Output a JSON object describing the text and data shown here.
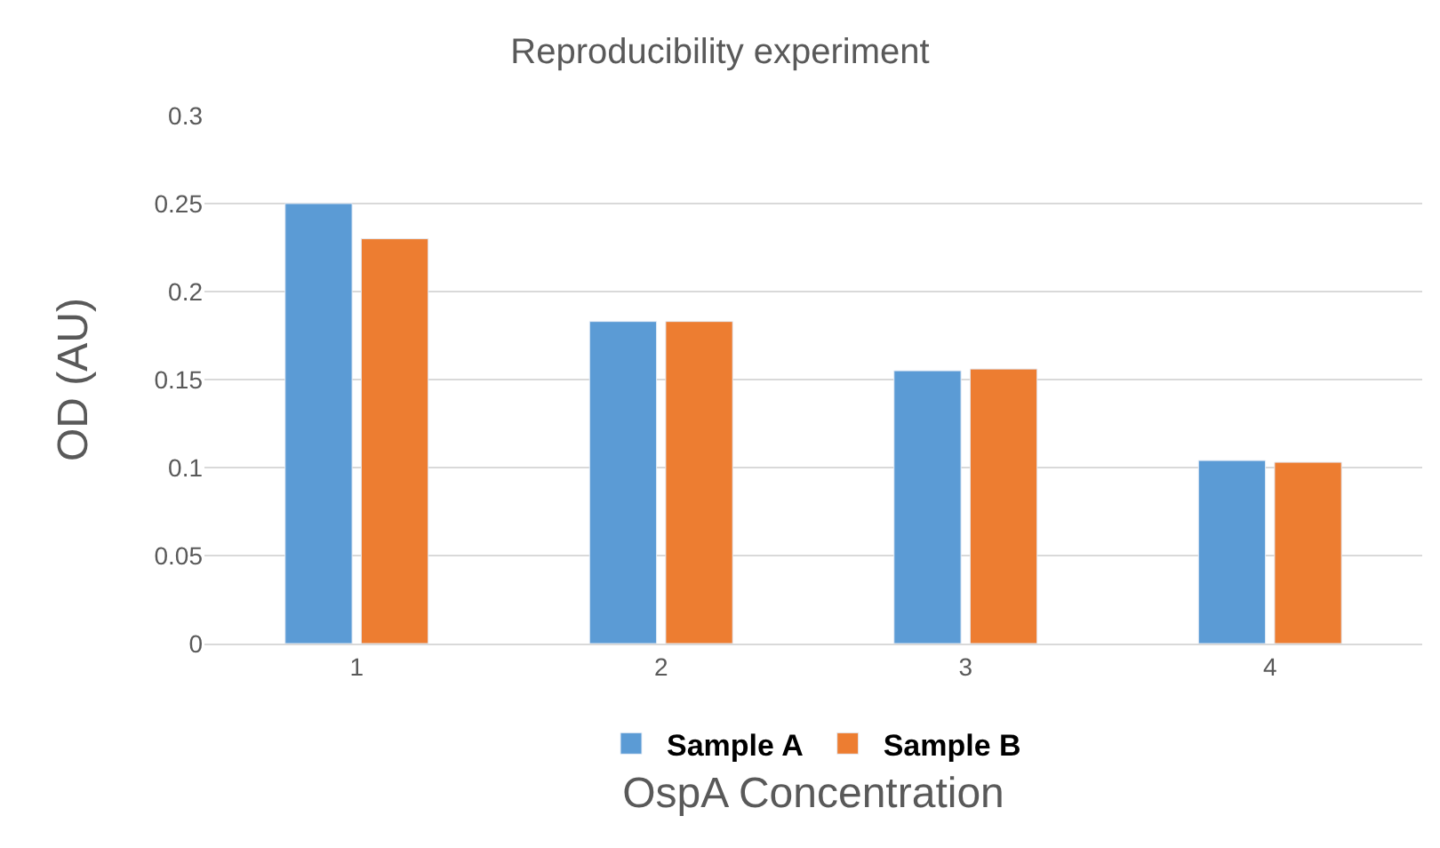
{
  "chart_data": {
    "type": "bar",
    "title": "Reproducibility experiment",
    "xlabel": "OspA Concentration",
    "ylabel": "OD (AU)",
    "categories": [
      "1",
      "2",
      "3",
      "4"
    ],
    "series": [
      {
        "name": "Sample A",
        "color": "#5b9bd5",
        "values": [
          0.25,
          0.183,
          0.155,
          0.104
        ]
      },
      {
        "name": "Sample B",
        "color": "#ed7d31",
        "values": [
          0.23,
          0.183,
          0.156,
          0.103
        ]
      }
    ],
    "ylim": [
      0,
      0.3
    ],
    "yticks": [
      0,
      0.05,
      0.1,
      0.15,
      0.2,
      0.25,
      0.3
    ],
    "grid": "y",
    "legend": "bottom"
  }
}
